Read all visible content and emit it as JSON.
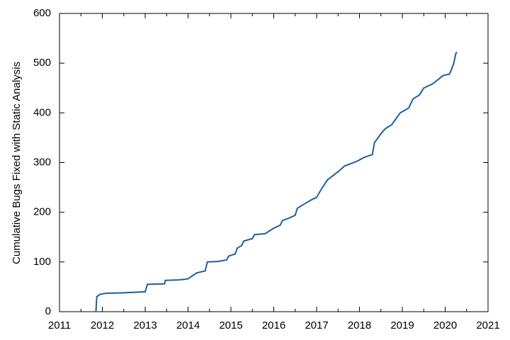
{
  "chart_data": {
    "type": "line",
    "ylabel": "Cumulative Bugs Fixed with Static Analysis",
    "xlim": [
      2011,
      2021
    ],
    "xticks": [
      2011,
      2012,
      2013,
      2014,
      2015,
      2016,
      2017,
      2018,
      2019,
      2020,
      2021
    ],
    "ylim": [
      0,
      600
    ],
    "yticks": [
      0,
      100,
      200,
      300,
      400,
      500,
      600
    ],
    "grid": false,
    "series": [
      {
        "color": "#1f5f9a",
        "x": [
          2011.85,
          2011.87,
          2011.95,
          2012.1,
          2012.5,
          2013.0,
          2013.05,
          2013.45,
          2013.47,
          2013.8,
          2014.0,
          2014.1,
          2014.2,
          2014.4,
          2014.45,
          2014.7,
          2014.9,
          2014.95,
          2015.1,
          2015.15,
          2015.25,
          2015.3,
          2015.5,
          2015.55,
          2015.8,
          2016.0,
          2016.15,
          2016.2,
          2016.4,
          2016.5,
          2016.55,
          2016.7,
          2016.9,
          2017.0,
          2017.1,
          2017.25,
          2017.4,
          2017.55,
          2017.65,
          2017.8,
          2017.95,
          2018.1,
          2018.3,
          2018.35,
          2018.5,
          2018.6,
          2018.75,
          2018.85,
          2018.95,
          2019.15,
          2019.25,
          2019.4,
          2019.5,
          2019.7,
          2019.85,
          2019.95,
          2020.1,
          2020.15,
          2020.2,
          2020.25,
          2020.28
        ],
        "values": [
          0,
          30,
          35,
          37,
          38,
          40,
          55,
          56,
          63,
          64,
          66,
          72,
          78,
          82,
          100,
          101,
          104,
          112,
          116,
          128,
          133,
          142,
          147,
          155,
          157,
          168,
          174,
          183,
          190,
          194,
          208,
          216,
          226,
          230,
          245,
          265,
          275,
          285,
          293,
          298,
          303,
          310,
          316,
          340,
          358,
          368,
          376,
          388,
          400,
          410,
          428,
          436,
          450,
          458,
          468,
          475,
          478,
          488,
          500,
          520,
          522
        ]
      }
    ]
  }
}
